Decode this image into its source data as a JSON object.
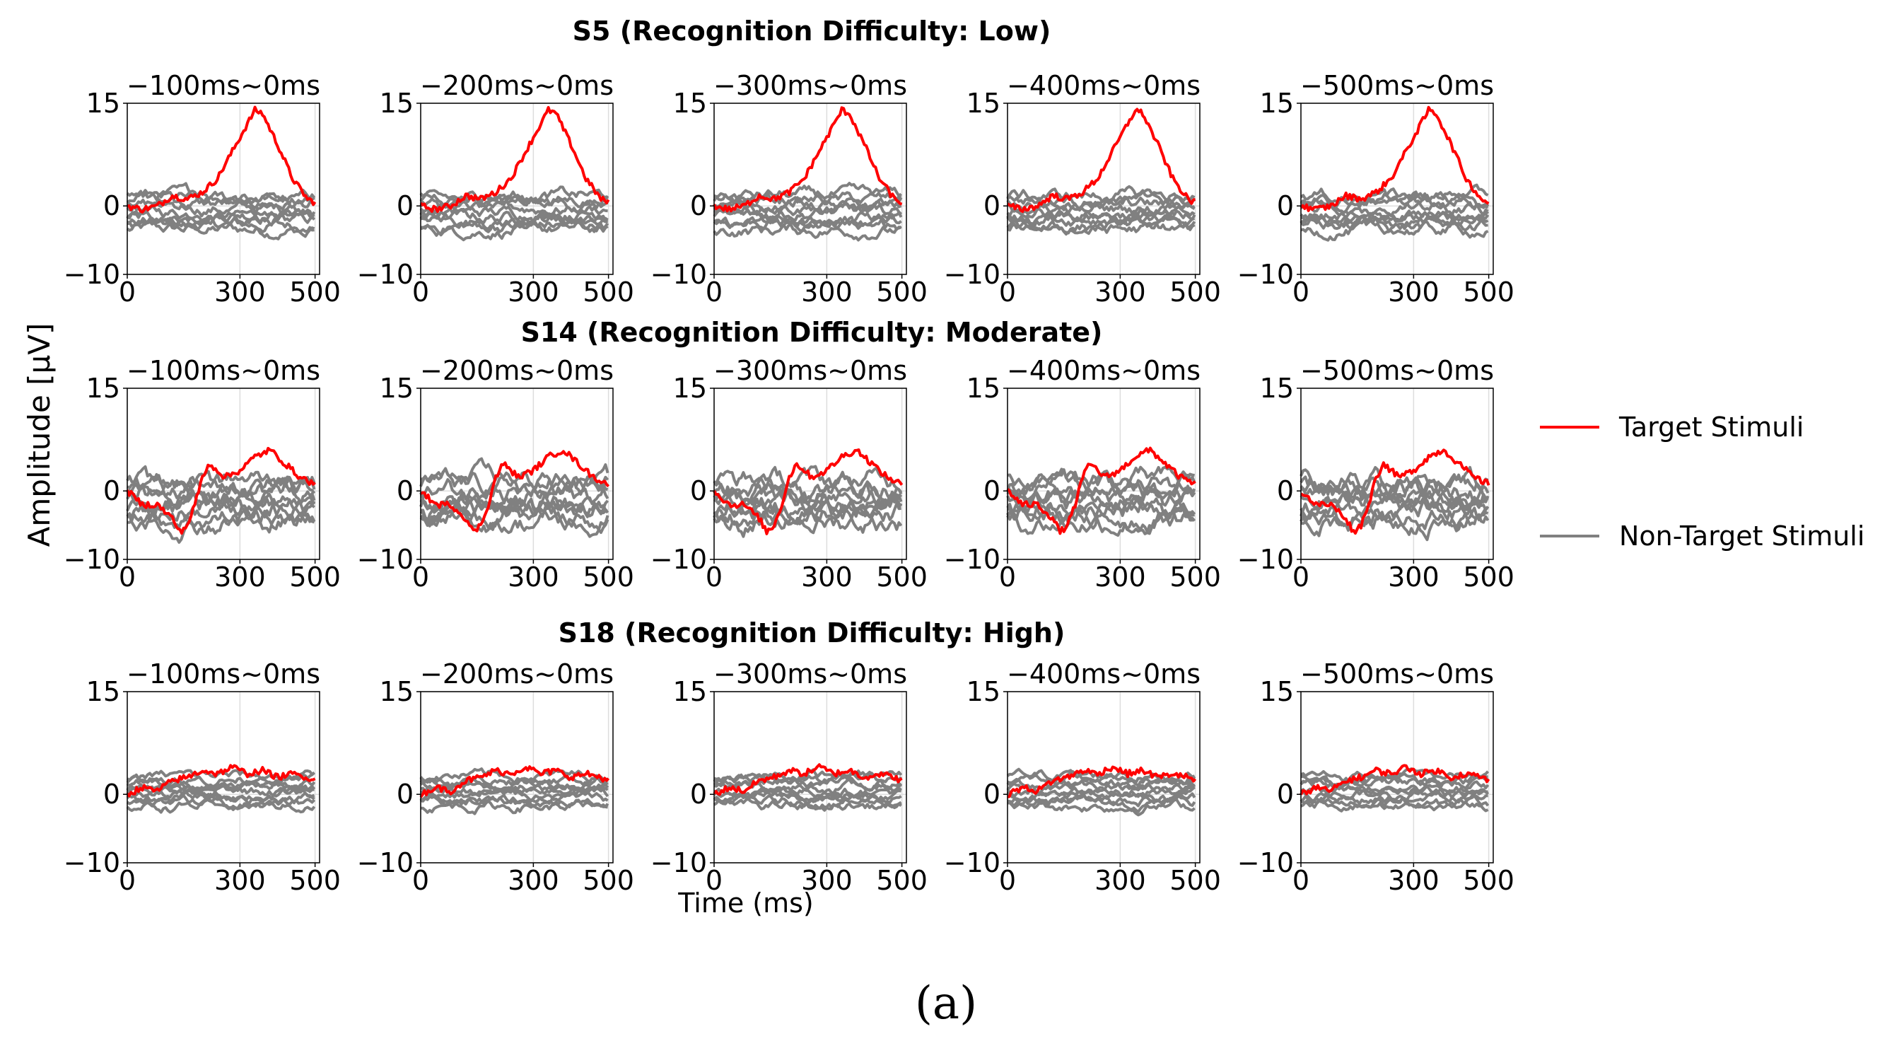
{
  "chart_data": {
    "type": "line",
    "ylabel": "Amplitude [μV]",
    "xlabel": "Time (ms)",
    "subfigure_label": "(a)",
    "xlim": [
      0,
      512
    ],
    "ylim": [
      -10,
      15
    ],
    "x_ticks": [
      0,
      300,
      500
    ],
    "y_ticks": [
      -10,
      0,
      15
    ],
    "panel_titles": [
      "−100ms~0ms",
      "−200ms~0ms",
      "−300ms~0ms",
      "−400ms~0ms",
      "−500ms~0ms"
    ],
    "legend": [
      {
        "name": "Target Stimuli",
        "color": "#ff0000"
      },
      {
        "name": "Non-Target Stimuli",
        "color": "#808080"
      }
    ],
    "rows": [
      {
        "title": "S5 (Recognition Difficulty: Low)",
        "target": {
          "x": [
            0,
            40,
            80,
            120,
            160,
            200,
            240,
            280,
            320,
            340,
            360,
            400,
            440,
            480,
            500
          ],
          "y": [
            0,
            -0.5,
            0,
            1.5,
            1,
            2,
            4,
            8,
            12,
            14,
            13.5,
            9,
            4,
            1,
            0.5
          ]
        },
        "nontarget": {
          "count": 9,
          "center": -1,
          "spread": 2.5,
          "wiggle": 1.5
        }
      },
      {
        "title": "S14 (Recognition Difficulty: Moderate)",
        "target": {
          "x": [
            0,
            40,
            80,
            120,
            140,
            160,
            180,
            200,
            220,
            260,
            300,
            340,
            380,
            420,
            460,
            500
          ],
          "y": [
            0,
            -2,
            -2,
            -4,
            -6,
            -5,
            -2,
            2,
            4,
            2,
            3,
            5,
            6,
            4,
            2,
            1
          ]
        },
        "nontarget": {
          "count": 9,
          "center": -1.5,
          "spread": 3,
          "wiggle": 2.5
        }
      },
      {
        "title": "S18 (Recognition Difficulty: High)",
        "target": {
          "x": [
            0,
            40,
            80,
            120,
            160,
            200,
            240,
            280,
            320,
            360,
            400,
            440,
            480,
            500
          ],
          "y": [
            0,
            1,
            0.5,
            2,
            2.5,
            3.5,
            3,
            4,
            3,
            3.5,
            2.5,
            3,
            2.5,
            2
          ]
        },
        "nontarget": {
          "count": 9,
          "center": 0.5,
          "spread": 2.2,
          "wiggle": 1.2
        }
      }
    ]
  }
}
